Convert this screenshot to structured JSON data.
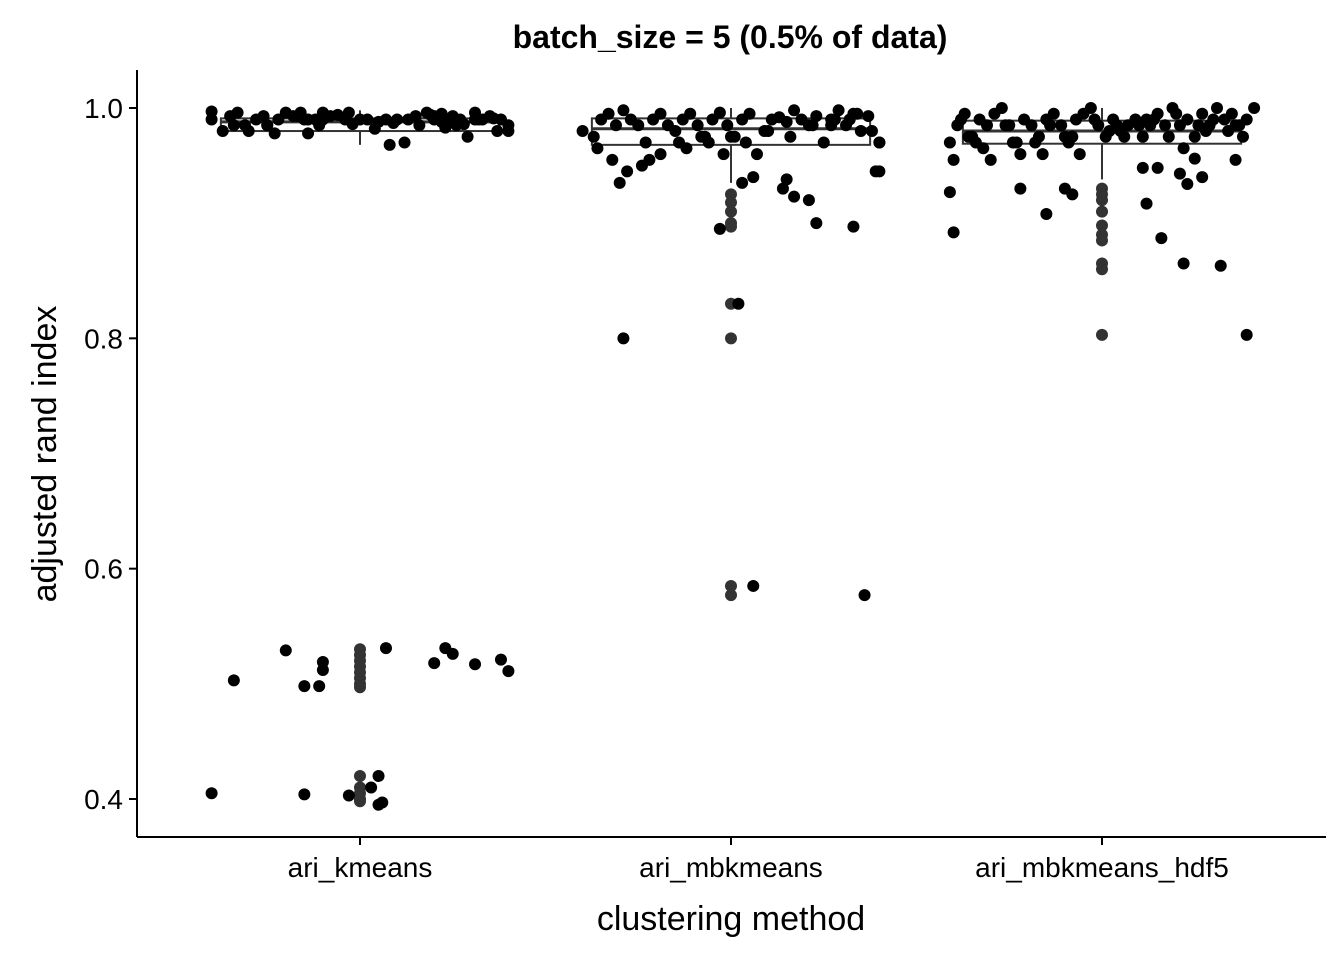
{
  "chart_data": {
    "type": "scatter",
    "subtype": "box-plot-with-jittered-points",
    "title": "batch_size = 5 (0.5% of data)",
    "xlabel": "clustering method",
    "ylabel": "adjusted rand index",
    "categories": [
      "ari_kmeans",
      "ari_mbkmeans",
      "ari_mbkmeans_hdf5"
    ],
    "ylim": [
      0.367,
      1.033
    ],
    "yticks": [
      0.4,
      0.6,
      0.8,
      1.0
    ],
    "ytick_labels": [
      "0.4",
      "0.6",
      "0.8",
      "1.0"
    ],
    "grid": false,
    "legend": "none",
    "colors": {
      "point": "#000000",
      "box": "#333333",
      "outlier": "#333333",
      "axis": "#000000"
    },
    "boxes": [
      {
        "category": "ari_kmeans",
        "q1": 0.98,
        "median": 0.988,
        "q3": 0.991,
        "whisker_low": 0.968,
        "whisker_high": 0.998
      },
      {
        "category": "ari_mbkmeans",
        "q1": 0.968,
        "median": 0.982,
        "q3": 0.991,
        "whisker_low": 0.935,
        "whisker_high": 1.0
      },
      {
        "category": "ari_mbkmeans_hdf5",
        "q1": 0.969,
        "median": 0.98,
        "q3": 0.989,
        "whisker_low": 0.938,
        "whisker_high": 1.0
      }
    ],
    "outliers": [
      {
        "category": "ari_kmeans",
        "values": [
          0.53,
          0.525,
          0.52,
          0.515,
          0.51,
          0.505,
          0.5,
          0.497,
          0.42,
          0.41,
          0.405,
          0.4,
          0.398
        ]
      },
      {
        "category": "ari_mbkmeans",
        "values": [
          0.925,
          0.918,
          0.91,
          0.9,
          0.897,
          0.83,
          0.8,
          0.585,
          0.577
        ]
      },
      {
        "category": "ari_mbkmeans_hdf5",
        "values": [
          0.93,
          0.925,
          0.92,
          0.91,
          0.898,
          0.89,
          0.885,
          0.865,
          0.86,
          0.803
        ]
      }
    ],
    "points": [
      {
        "category": "ari_kmeans",
        "x": [
          -0.4,
          -0.37,
          -0.35,
          -0.33,
          -0.31,
          -0.3,
          -0.28,
          -0.26,
          -0.25,
          -0.23,
          -0.22,
          -0.2,
          -0.18,
          -0.16,
          -0.14,
          -0.12,
          -0.1,
          -0.08,
          -0.06,
          -0.04,
          -0.02,
          0.0,
          0.02,
          0.05,
          0.08,
          0.1,
          0.12,
          0.15,
          0.16,
          0.18,
          0.2,
          0.22,
          0.23,
          0.25,
          0.26,
          0.27,
          0.29,
          0.31,
          0.33,
          0.35,
          0.37,
          0.4,
          -0.25,
          -0.17,
          -0.11,
          -0.03,
          0.04,
          0.09,
          0.13,
          0.19,
          0.24,
          0.28,
          0.32,
          0.36,
          -0.4,
          -0.34,
          -0.14,
          -0.1,
          -0.11,
          -0.15,
          0.07,
          0.2,
          0.22,
          0.31,
          0.38,
          0.4,
          -0.4,
          -0.15,
          -0.03,
          0.03,
          0.05,
          0.06
        ],
        "y": [
          0.997,
          0.98,
          0.993,
          0.996,
          0.985,
          0.98,
          0.99,
          0.993,
          0.985,
          0.978,
          0.99,
          0.996,
          0.993,
          0.996,
          0.978,
          0.99,
          0.996,
          0.993,
          0.994,
          0.99,
          0.986,
          0.99,
          0.99,
          0.988,
          0.968,
          0.99,
          0.97,
          0.993,
          0.985,
          0.996,
          0.99,
          0.995,
          0.983,
          0.993,
          0.985,
          0.99,
          0.975,
          0.996,
          0.99,
          0.993,
          0.98,
          0.98,
          0.985,
          0.993,
          0.99,
          0.996,
          0.982,
          0.987,
          0.99,
          0.994,
          0.99,
          0.986,
          0.99,
          0.991,
          0.99,
          0.985,
          0.99,
          0.99,
          0.985,
          0.99,
          0.99,
          0.993,
          0.988,
          0.99,
          0.99,
          0.985,
          0.405,
          0.404,
          0.403,
          0.41,
          0.42,
          0.397
        ],
        "extra": [
          [
            -0.34,
            0.503
          ],
          [
            -0.2,
            0.529
          ],
          [
            -0.15,
            0.498
          ],
          [
            -0.11,
            0.498
          ],
          [
            -0.1,
            0.512
          ],
          [
            -0.1,
            0.519
          ],
          [
            0.07,
            0.531
          ],
          [
            0.2,
            0.518
          ],
          [
            0.23,
            0.531
          ],
          [
            0.25,
            0.526
          ],
          [
            0.31,
            0.517
          ],
          [
            0.38,
            0.521
          ],
          [
            0.4,
            0.511
          ],
          [
            0.05,
            0.395
          ]
        ]
      },
      {
        "category": "ari_mbkmeans",
        "x": [
          -0.4,
          -0.37,
          -0.35,
          -0.33,
          -0.31,
          -0.29,
          -0.27,
          -0.25,
          -0.23,
          -0.21,
          -0.19,
          -0.17,
          -0.15,
          -0.13,
          -0.11,
          -0.09,
          -0.07,
          -0.05,
          -0.03,
          -0.01,
          0.01,
          0.03,
          0.05,
          0.07,
          0.09,
          0.11,
          0.13,
          0.15,
          0.17,
          0.19,
          0.21,
          0.23,
          0.25,
          0.27,
          0.29,
          0.31,
          0.33,
          0.35,
          0.37,
          0.4,
          -0.36,
          -0.32,
          -0.28,
          -0.24,
          -0.19,
          -0.14,
          -0.08,
          -0.02,
          0.04,
          0.1,
          0.16,
          0.22,
          0.28,
          0.34,
          0.39,
          -0.3,
          -0.22,
          -0.12,
          -0.06,
          0.0,
          0.06,
          0.14,
          0.21,
          0.27,
          0.32,
          0.38
        ],
        "y": [
          0.98,
          0.975,
          0.99,
          0.995,
          0.985,
          0.998,
          0.99,
          0.985,
          0.97,
          0.99,
          0.995,
          0.985,
          0.98,
          0.99,
          0.995,
          0.985,
          0.975,
          0.99,
          0.996,
          0.985,
          0.975,
          0.99,
          0.995,
          0.96,
          0.98,
          0.99,
          0.992,
          0.988,
          0.998,
          0.99,
          0.985,
          0.993,
          0.97,
          0.99,
          0.998,
          0.985,
          0.995,
          0.98,
          0.993,
          0.97,
          0.965,
          0.955,
          0.945,
          0.95,
          0.96,
          0.97,
          0.975,
          0.96,
          0.97,
          0.98,
          0.975,
          0.985,
          0.99,
          0.995,
          0.945,
          0.935,
          0.955,
          0.965,
          0.97,
          0.975,
          0.94,
          0.93,
          0.92,
          0.985,
          0.99,
          0.98
        ],
        "extra": [
          [
            -0.29,
            0.8
          ],
          [
            -0.03,
            0.895
          ],
          [
            0.02,
            0.83
          ],
          [
            0.03,
            0.935
          ],
          [
            0.06,
            0.585
          ],
          [
            0.15,
            0.938
          ],
          [
            0.17,
            0.923
          ],
          [
            0.23,
            0.9
          ],
          [
            0.33,
            0.897
          ],
          [
            0.36,
            0.577
          ],
          [
            0.4,
            0.945
          ],
          [
            0.4,
            0.97
          ]
        ]
      },
      {
        "category": "ari_mbkmeans_hdf5",
        "x": [
          -0.41,
          -0.39,
          -0.37,
          -0.35,
          -0.33,
          -0.31,
          -0.29,
          -0.27,
          -0.25,
          -0.23,
          -0.21,
          -0.19,
          -0.17,
          -0.15,
          -0.13,
          -0.11,
          -0.09,
          -0.07,
          -0.05,
          -0.03,
          -0.01,
          0.01,
          0.03,
          0.05,
          0.07,
          0.09,
          0.11,
          0.13,
          0.15,
          0.17,
          0.19,
          0.21,
          0.23,
          0.25,
          0.27,
          0.29,
          0.31,
          0.33,
          0.35,
          0.37,
          0.39,
          0.41,
          -0.38,
          -0.34,
          -0.3,
          -0.26,
          -0.22,
          -0.18,
          -0.14,
          -0.1,
          -0.06,
          -0.02,
          0.02,
          0.06,
          0.1,
          0.14,
          0.18,
          0.22,
          0.26,
          0.3,
          0.34,
          0.38,
          -0.4,
          -0.36,
          -0.32,
          -0.24,
          -0.16,
          -0.08,
          0.04,
          0.12,
          0.2,
          0.28,
          0.36
        ],
        "y": [
          0.97,
          0.985,
          0.995,
          0.975,
          0.99,
          0.985,
          0.995,
          1.0,
          0.985,
          0.97,
          0.99,
          0.985,
          0.975,
          0.99,
          0.995,
          0.985,
          0.97,
          0.99,
          0.995,
          1.0,
          0.985,
          0.975,
          0.99,
          0.98,
          0.985,
          0.99,
          0.975,
          0.985,
          0.995,
          0.985,
          1.0,
          0.985,
          0.99,
          0.975,
          0.995,
          0.985,
          1.0,
          0.99,
          0.995,
          0.985,
          0.99,
          1.0,
          0.99,
          0.97,
          0.955,
          0.985,
          0.96,
          0.97,
          0.985,
          0.975,
          0.96,
          0.99,
          0.98,
          0.975,
          0.985,
          0.99,
          0.975,
          0.965,
          0.985,
          0.99,
          0.98,
          0.975,
          0.955,
          0.975,
          0.965,
          0.97,
          0.96,
          0.975,
          0.985,
          0.99,
          0.995,
          0.98,
          0.985
        ],
        "extra": [
          [
            -0.41,
            0.927
          ],
          [
            -0.4,
            0.892
          ],
          [
            -0.22,
            0.93
          ],
          [
            -0.15,
            0.908
          ],
          [
            -0.1,
            0.93
          ],
          [
            -0.08,
            0.925
          ],
          [
            0.11,
            0.948
          ],
          [
            0.12,
            0.917
          ],
          [
            0.15,
            0.948
          ],
          [
            0.16,
            0.887
          ],
          [
            0.21,
            0.943
          ],
          [
            0.22,
            0.865
          ],
          [
            0.23,
            0.934
          ],
          [
            0.25,
            0.956
          ],
          [
            0.27,
            0.94
          ],
          [
            0.32,
            0.863
          ],
          [
            0.36,
            0.955
          ],
          [
            0.39,
            0.803
          ]
        ]
      }
    ]
  }
}
